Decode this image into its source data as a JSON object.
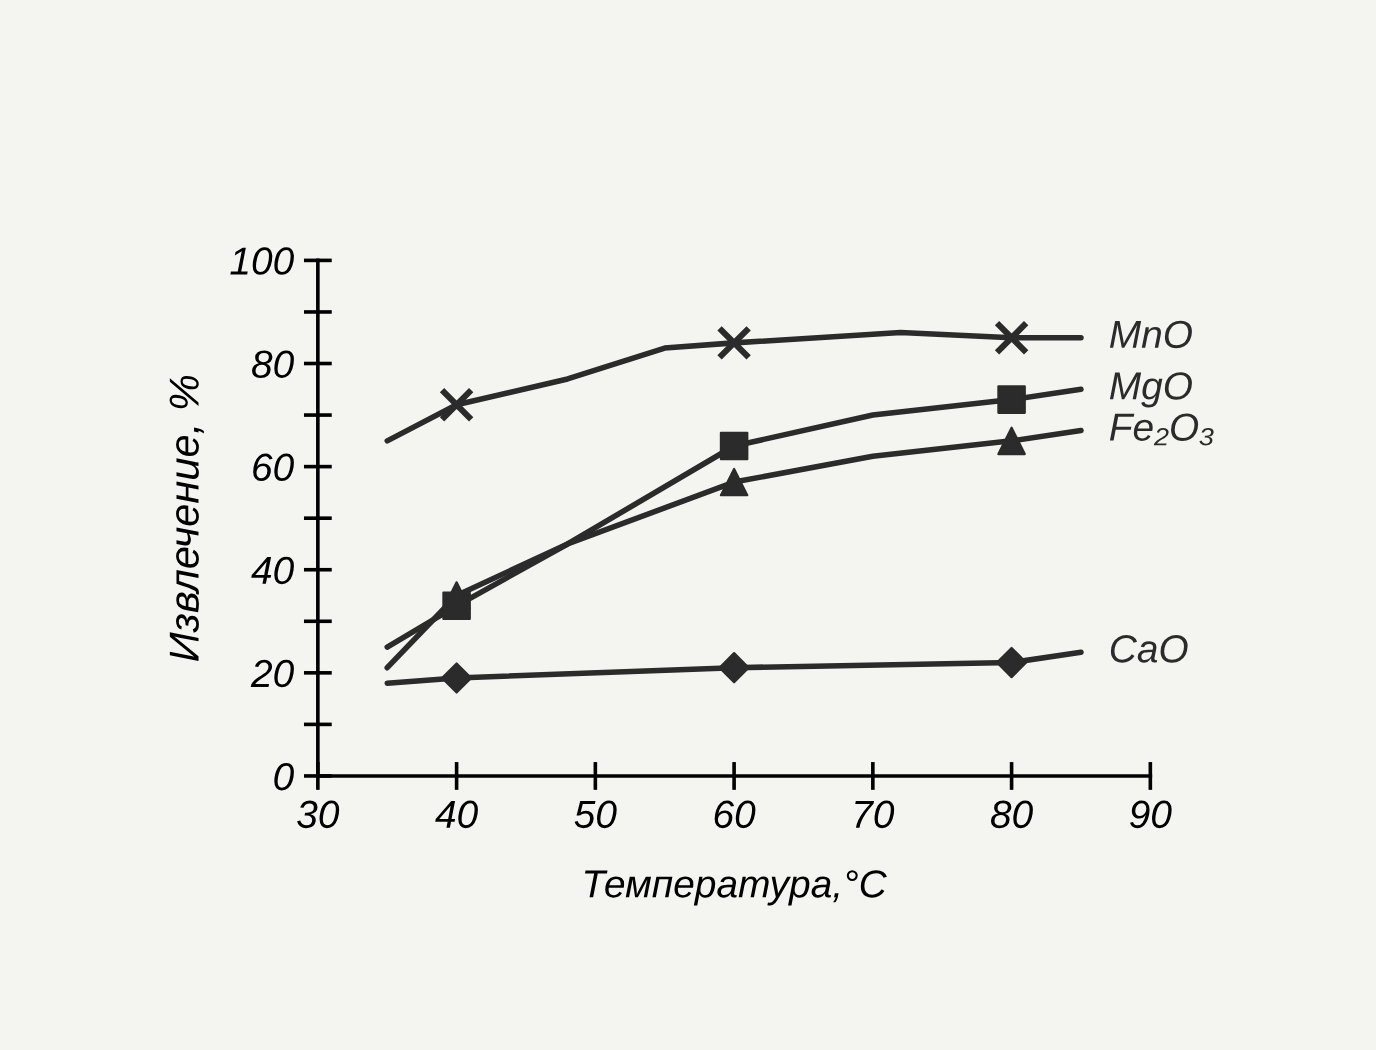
{
  "chart_data": {
    "type": "line",
    "xlabel": "Температура,°C",
    "ylabel": "Извлечение, %",
    "xlim": [
      30,
      90
    ],
    "xticks": [
      30,
      40,
      50,
      60,
      70,
      80,
      90
    ],
    "ylim": [
      0,
      100
    ],
    "yticks": [
      0,
      {
        "value": 10,
        "label": null
      },
      20,
      {
        "value": 30,
        "label": null
      },
      40,
      {
        "value": 50,
        "label": null
      },
      60,
      {
        "value": 70,
        "label": null
      },
      80,
      {
        "value": 90,
        "label": null
      },
      100
    ],
    "grid": false,
    "legend": false,
    "line_style": "solid",
    "series": [
      {
        "name": "MnO",
        "color": "#2b2b2b",
        "marker": "none",
        "x": [
          35,
          40,
          48,
          55,
          60,
          72,
          80,
          85
        ],
        "values": [
          65,
          72,
          77,
          83,
          84,
          86,
          85,
          85
        ]
      },
      {
        "name": "MgO",
        "color": "#2b2b2b",
        "marker": "none",
        "x": [
          35,
          40,
          48,
          60,
          70,
          80,
          85
        ],
        "values": [
          25,
          33,
          45,
          64,
          70,
          73,
          75
        ]
      },
      {
        "name": "Fe₂O₃",
        "color": "#2b2b2b",
        "marker": "none",
        "x": [
          35,
          40,
          48,
          60,
          70,
          80,
          85
        ],
        "values": [
          21,
          35,
          45,
          57,
          62,
          65,
          67
        ]
      },
      {
        "name": "CaO",
        "color": "#2b2b2b",
        "marker": "none",
        "x": [
          35,
          40,
          60,
          80,
          85
        ],
        "values": [
          18,
          19,
          21,
          22,
          24
        ]
      },
      {
        "type": "scatter",
        "color": "#2b2b2b",
        "marker": "cross",
        "x": [
          40,
          60,
          80
        ],
        "values": [
          72,
          84,
          85
        ]
      },
      {
        "type": "scatter",
        "color": "#2b2b2b",
        "marker": "square",
        "x": [
          40,
          60,
          80
        ],
        "values": [
          33,
          64,
          73
        ]
      },
      {
        "type": "scatter",
        "color": "#2b2b2b",
        "marker": "triangle",
        "x": [
          40,
          60,
          80
        ],
        "values": [
          35,
          57,
          65
        ]
      },
      {
        "type": "scatter",
        "color": "#2b2b2b",
        "marker": "diamond",
        "x": [
          40,
          60,
          80
        ],
        "values": [
          19,
          21,
          22
        ]
      }
    ]
  }
}
